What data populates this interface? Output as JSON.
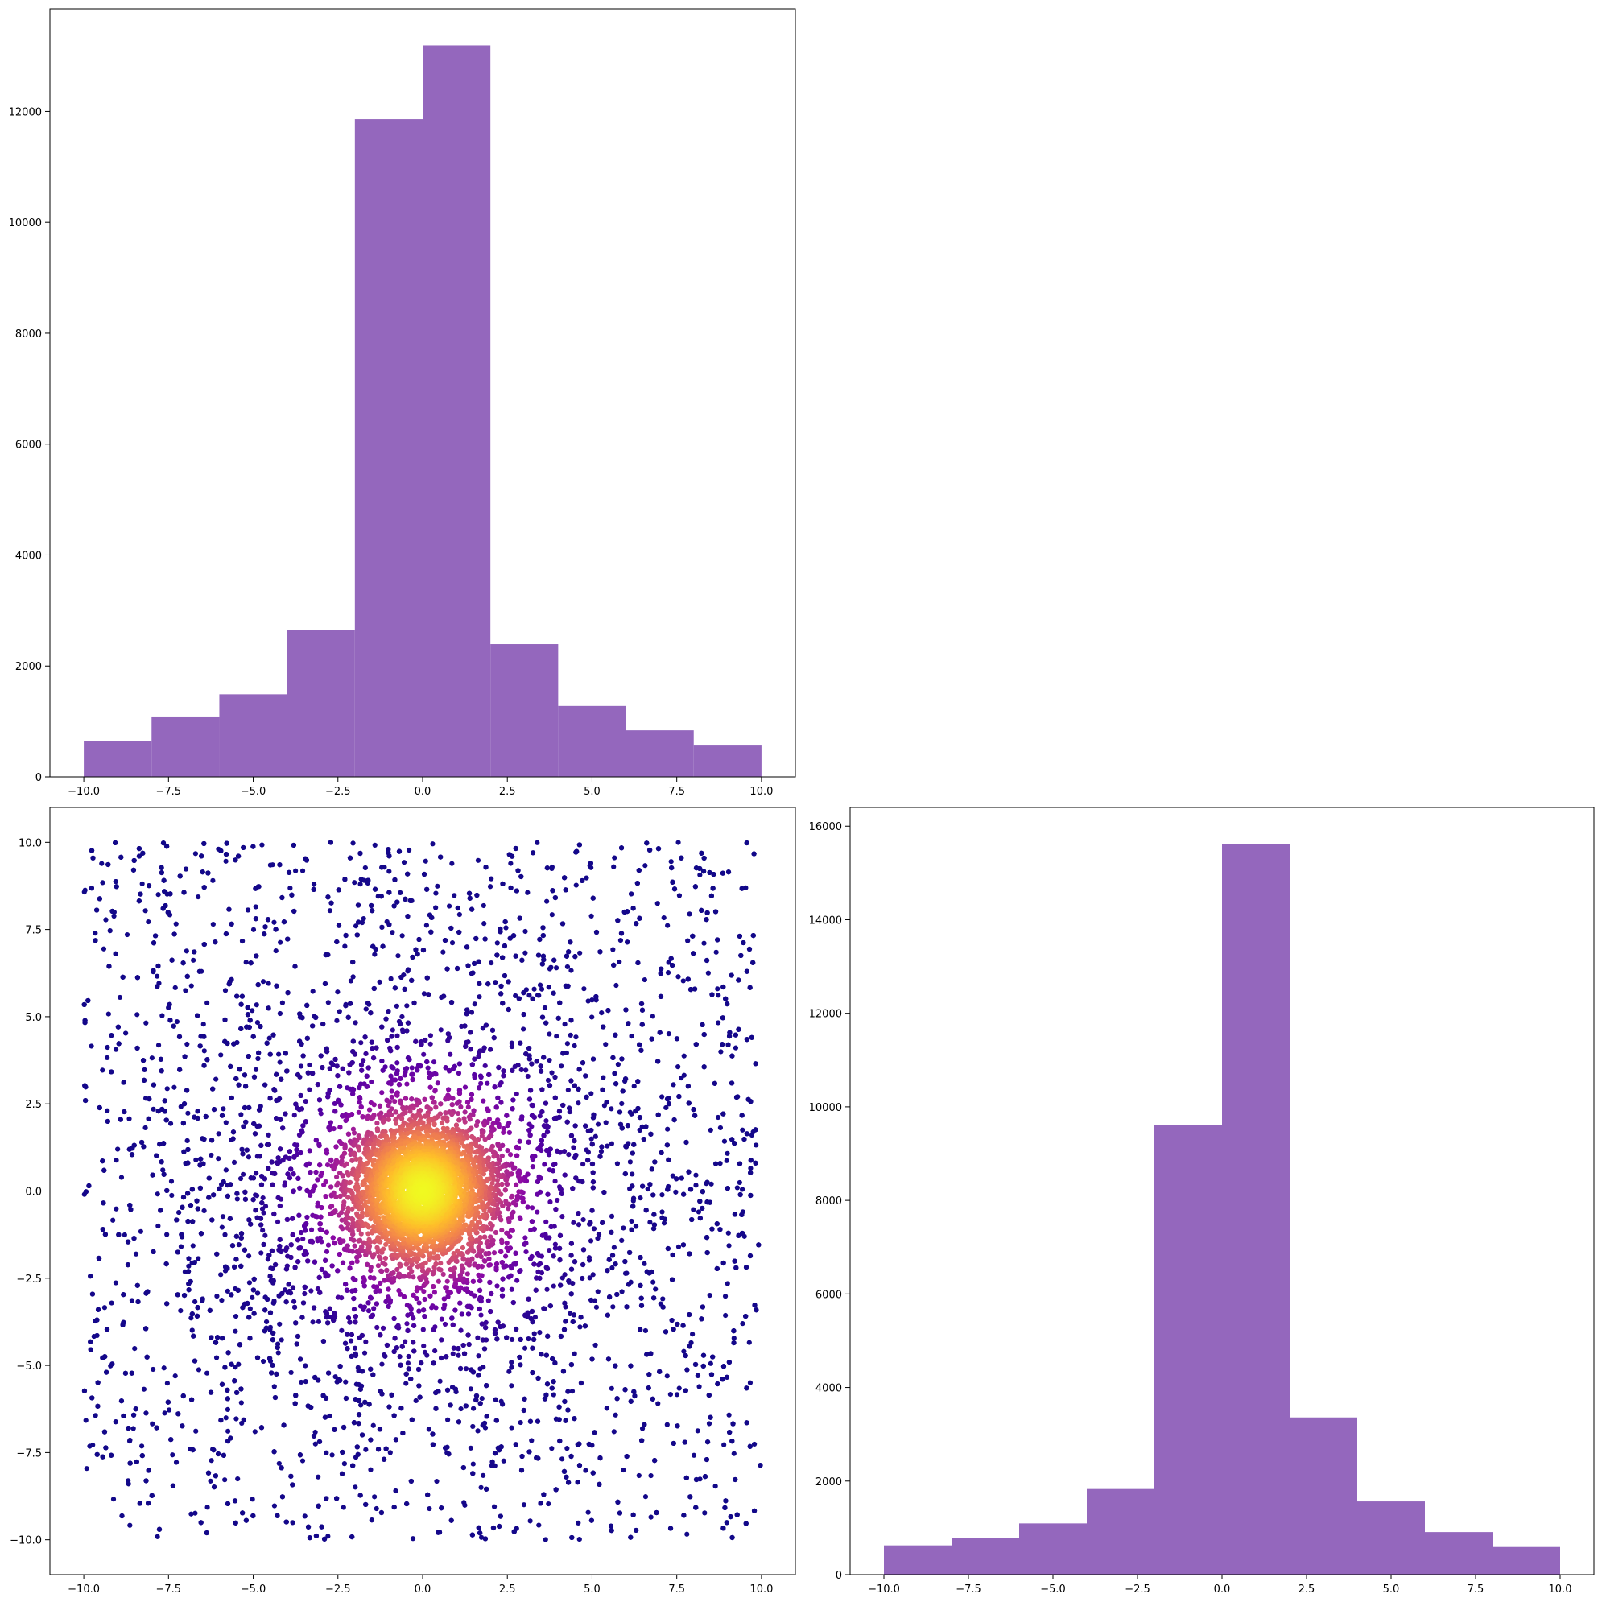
{
  "chart_data": [
    {
      "type": "bar",
      "bin_edges": [
        -10,
        -8,
        -6,
        -4,
        -2,
        0,
        2,
        4,
        6,
        8,
        10
      ],
      "values": [
        640,
        1075,
        1490,
        2655,
        11860,
        13190,
        2395,
        1280,
        840,
        565
      ],
      "xlim": [
        -11,
        11
      ],
      "ylim": [
        0,
        13850
      ],
      "xticks": [
        "−10.0",
        "−7.5",
        "−5.0",
        "−2.5",
        "0.0",
        "2.5",
        "5.0",
        "7.5",
        "10.0"
      ],
      "xtick_values": [
        -10,
        -7.5,
        -5,
        -2.5,
        0,
        2.5,
        5,
        7.5,
        10
      ],
      "yticks": [
        "0",
        "2000",
        "4000",
        "6000",
        "8000",
        "10000",
        "12000"
      ],
      "ytick_values": [
        0,
        2000,
        4000,
        6000,
        8000,
        10000,
        12000
      ],
      "color": "#9467bd",
      "grid": false
    },
    {
      "type": "scatter",
      "xlim": [
        -11,
        11
      ],
      "ylim": [
        -11,
        11
      ],
      "x_range": [
        -10,
        10
      ],
      "y_range": [
        -10,
        10
      ],
      "point_count_shown": 9000,
      "density_center": [
        0,
        0
      ],
      "colormap": [
        "#0d0887",
        "#5302a3",
        "#8b0aa5",
        "#b83289",
        "#db5c68",
        "#f48849",
        "#febd2a",
        "#f0f921"
      ],
      "xticks": [
        "−10.0",
        "−7.5",
        "−5.0",
        "−2.5",
        "0.0",
        "2.5",
        "5.0",
        "7.5",
        "10.0"
      ],
      "xtick_values": [
        -10,
        -7.5,
        -5,
        -2.5,
        0,
        2.5,
        5,
        7.5,
        10
      ],
      "yticks": [
        "−10.0",
        "−7.5",
        "−5.0",
        "−2.5",
        "0.0",
        "2.5",
        "5.0",
        "7.5",
        "10.0"
      ],
      "ytick_values": [
        -10,
        -7.5,
        -5,
        -2.5,
        0,
        2.5,
        5,
        7.5,
        10
      ],
      "grid": false
    },
    {
      "type": "bar",
      "bin_edges": [
        -10,
        -8,
        -6,
        -4,
        -2,
        0,
        2,
        4,
        6,
        8,
        10
      ],
      "values": [
        625,
        780,
        1095,
        1830,
        9610,
        15610,
        3360,
        1565,
        910,
        590
      ],
      "xlim": [
        -11,
        11
      ],
      "ylim": [
        0,
        16400
      ],
      "xticks": [
        "−10.0",
        "−7.5",
        "−5.0",
        "−2.5",
        "0.0",
        "2.5",
        "5.0",
        "7.5",
        "10.0"
      ],
      "xtick_values": [
        -10,
        -7.5,
        -5,
        -2.5,
        0,
        2.5,
        5,
        7.5,
        10
      ],
      "yticks": [
        "0",
        "2000",
        "4000",
        "6000",
        "8000",
        "10000",
        "12000",
        "14000",
        "16000"
      ],
      "ytick_values": [
        0,
        2000,
        4000,
        6000,
        8000,
        10000,
        12000,
        14000,
        16000
      ],
      "color": "#9467bd",
      "grid": false
    }
  ]
}
